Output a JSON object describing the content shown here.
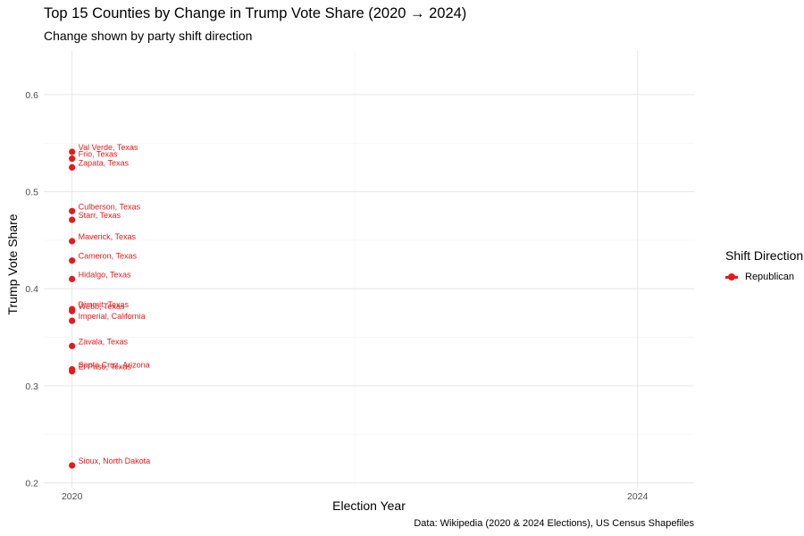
{
  "chart_data": {
    "type": "scatter",
    "title": "Top 15 Counties by Change in Trump Vote Share (2020 → 2024)",
    "subtitle": "Change shown by party shift direction",
    "xlabel": "Election Year",
    "ylabel": "Trump Vote Share",
    "caption": "Data: Wikipedia (2020 & 2024 Elections), US Census Shapefiles",
    "x_ticks": [
      2020,
      2024
    ],
    "y_ticks": [
      0.2,
      0.3,
      0.4,
      0.5,
      0.6
    ],
    "xlim": [
      2019.8,
      2024.4
    ],
    "ylim": [
      0.195,
      0.645
    ],
    "grid": true,
    "legend": {
      "title": "Shift Direction",
      "position": "right",
      "entries": [
        "Republican"
      ]
    },
    "series": [
      {
        "name": "Republican",
        "color": "#e41a1c",
        "points": [
          {
            "label": "Val Verde, Texas",
            "x": 2020,
            "y": 0.541
          },
          {
            "label": "Frio, Texas",
            "x": 2020,
            "y": 0.534
          },
          {
            "label": "Zapata, Texas",
            "x": 2020,
            "y": 0.525
          },
          {
            "label": "Culberson, Texas",
            "x": 2020,
            "y": 0.48
          },
          {
            "label": "Starr, Texas",
            "x": 2020,
            "y": 0.471
          },
          {
            "label": "Maverick, Texas",
            "x": 2020,
            "y": 0.449
          },
          {
            "label": "Cameron, Texas",
            "x": 2020,
            "y": 0.429
          },
          {
            "label": "Hidalgo, Texas",
            "x": 2020,
            "y": 0.41
          },
          {
            "label": "Dimmit, Texas",
            "x": 2020,
            "y": 0.379
          },
          {
            "label": "Webb, Texas",
            "x": 2020,
            "y": 0.377
          },
          {
            "label": "Imperial, California",
            "x": 2020,
            "y": 0.367
          },
          {
            "label": "Zavala, Texas",
            "x": 2020,
            "y": 0.341
          },
          {
            "label": "Santa Cruz, Arizona",
            "x": 2020,
            "y": 0.317
          },
          {
            "label": "El Paso, Texas",
            "x": 2020,
            "y": 0.315
          },
          {
            "label": "Sioux, North Dakota",
            "x": 2020,
            "y": 0.218
          }
        ]
      }
    ]
  }
}
